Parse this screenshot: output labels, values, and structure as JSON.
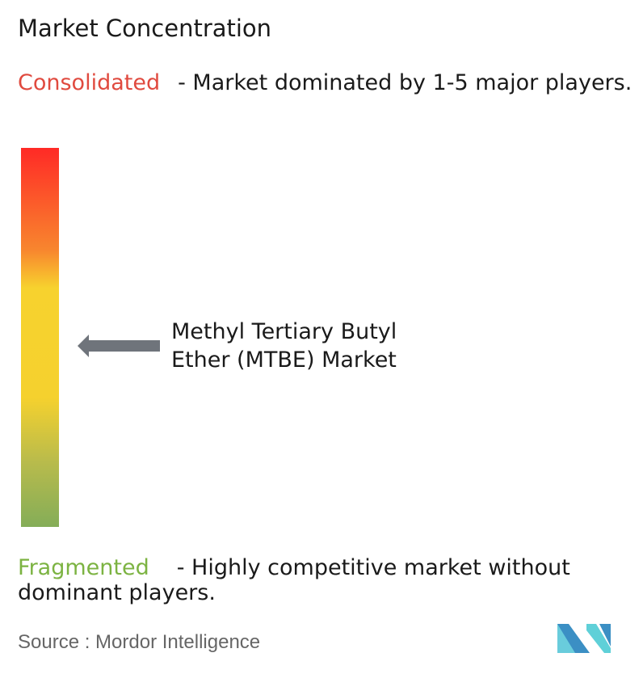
{
  "title": "Market Concentration",
  "consolidated": {
    "label": "Consolidated",
    "description": "- Market dominated by 1-5 major players.",
    "color": "#e04a3f"
  },
  "fragmented": {
    "label": "Fragmented",
    "description": "- Highly competitive market without dominant players.",
    "color": "#7cb342"
  },
  "scale": {
    "gradient_colors": [
      "#ff2a26",
      "#f8862e",
      "#f7d22e",
      "#f5d12e",
      "#b8bb4c",
      "#84ad58"
    ]
  },
  "marker": {
    "label": "Methyl Tertiary Butyl Ether (MTBE) Market",
    "line1": "Methyl Tertiary Butyl",
    "line2": "Ether (MTBE) Market",
    "arrow_color": "#6f747b",
    "icon": "arrow-left-icon"
  },
  "footer": {
    "source": "Source :  Mordor Intelligence",
    "logo": "Mordor Intelligence logo"
  }
}
